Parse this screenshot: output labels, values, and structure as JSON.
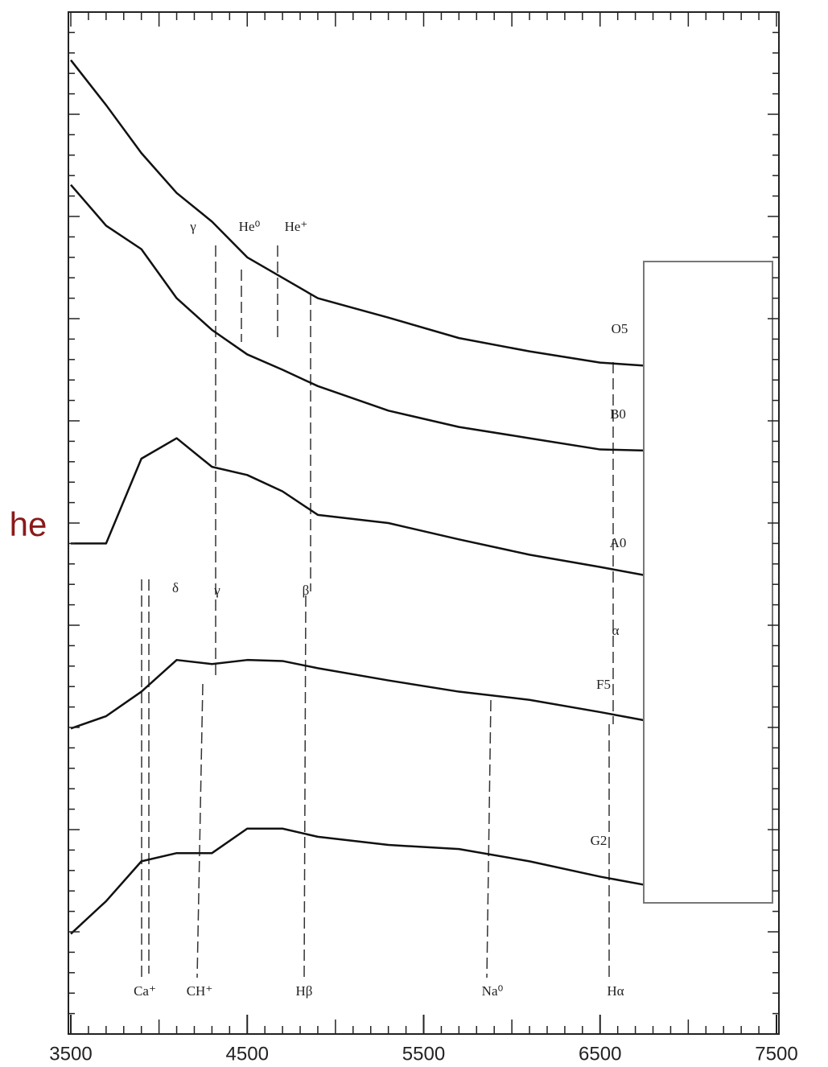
{
  "chart_data": {
    "type": "line",
    "x": [
      3500,
      3700,
      3900,
      4100,
      4300,
      4500,
      4700,
      4900,
      5300,
      5700,
      6100,
      6500,
      6750
    ],
    "series": [
      {
        "name": "O5",
        "color": "#111111",
        "values": [
          95.3,
          90.9,
          86.2,
          82.3,
          79.5,
          76.0,
          74.0,
          72.0,
          70.1,
          68.1,
          66.8,
          65.7,
          65.4
        ]
      },
      {
        "name": "B0",
        "color": "#111111",
        "values": [
          83.1,
          79.1,
          76.8,
          72.0,
          68.9,
          66.5,
          65.0,
          63.4,
          61.0,
          59.4,
          58.3,
          57.2,
          57.1
        ]
      },
      {
        "name": "A0",
        "color": "#111111",
        "values": [
          48.0,
          48.0,
          56.3,
          58.3,
          55.5,
          54.7,
          53.1,
          50.8,
          50.0,
          48.4,
          46.9,
          45.7,
          44.9
        ]
      },
      {
        "name": "F5",
        "color": "#111111",
        "values": [
          29.9,
          31.1,
          33.5,
          36.6,
          36.2,
          36.6,
          36.5,
          35.8,
          34.6,
          33.5,
          32.7,
          31.5,
          30.7
        ]
      },
      {
        "name": "G2",
        "color": "#111111",
        "values": [
          9.8,
          13.0,
          16.9,
          17.7,
          17.7,
          20.1,
          20.1,
          19.3,
          18.5,
          18.1,
          16.9,
          15.4,
          14.6
        ]
      }
    ],
    "xlim": [
      3500,
      7500
    ],
    "ylim": [
      0,
      100
    ],
    "xticks": [
      3500,
      4500,
      5500,
      6500,
      7500
    ],
    "annotations": [
      "He⁰",
      "He⁺",
      "γ",
      "δ",
      "γ",
      "β",
      "α",
      "Ca⁺",
      "CH⁺",
      "Hβ",
      "Na⁰",
      "Hα",
      "he"
    ]
  }
}
